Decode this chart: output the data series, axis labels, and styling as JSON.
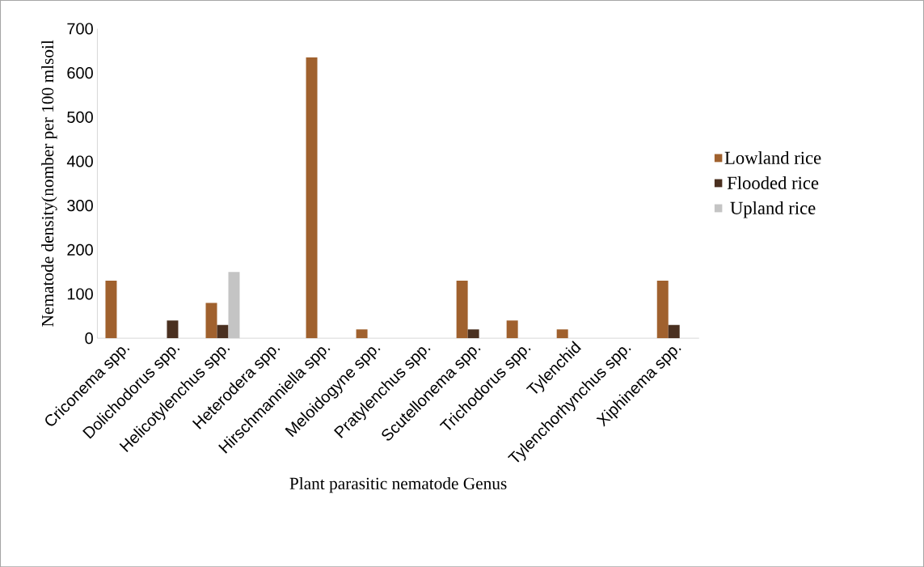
{
  "chart_data": {
    "type": "bar",
    "xlabel": "Plant parasitic nematode Genus",
    "ylabel": "Nematode density(nomber per 100 mlsoil",
    "categories": [
      "Criconema spp.",
      "Dolichodorus spp.",
      "Helicotylenchus spp.",
      "Heterodera spp.",
      "Hirschmanniella spp.",
      "Meloidogyne spp.",
      "Pratylenchus spp.",
      "Scutellonema spp.",
      "Trichodorus spp.",
      "Tylenchid",
      "Tylenchorhynchus spp.",
      "Xiphinema spp."
    ],
    "series": [
      {
        "name": "Lowland rice",
        "color": "#a0612e",
        "values": [
          130,
          0,
          80,
          0,
          635,
          20,
          0,
          130,
          40,
          20,
          0,
          130
        ]
      },
      {
        "name": "Flooded rice",
        "color": "#4a3020",
        "values": [
          0,
          40,
          30,
          0,
          0,
          0,
          0,
          20,
          0,
          0,
          0,
          30
        ]
      },
      {
        "name": "Upland rice",
        "color": "#c4c4c4",
        "values": [
          0,
          0,
          150,
          0,
          0,
          0,
          0,
          0,
          0,
          0,
          0,
          0
        ]
      }
    ],
    "ylim": [
      0,
      700
    ],
    "yticks": [
      0,
      100,
      200,
      300,
      400,
      500,
      600,
      700
    ],
    "legend": "right",
    "grid": false
  }
}
